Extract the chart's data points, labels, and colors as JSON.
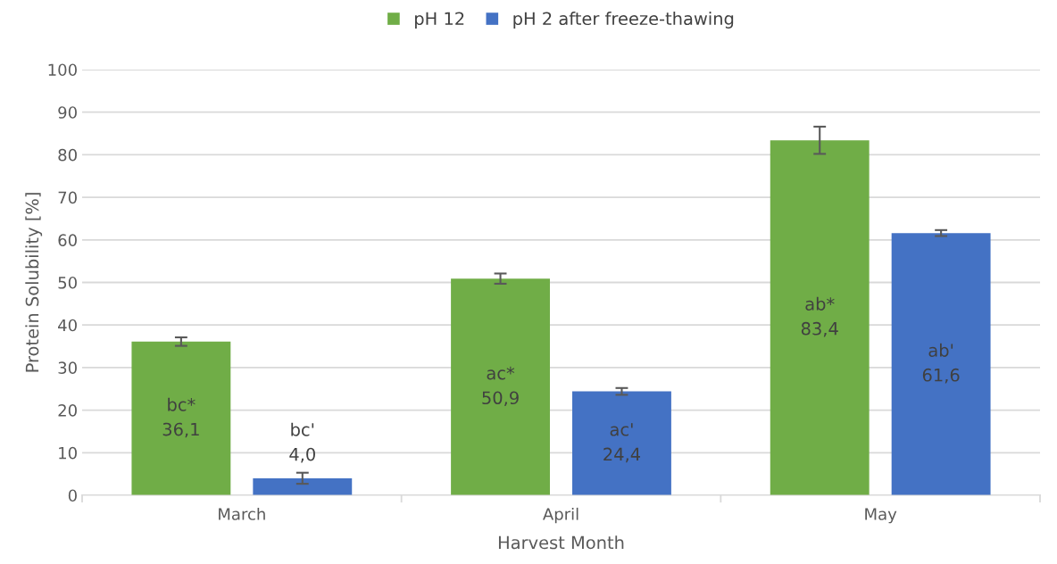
{
  "chart_data": {
    "type": "bar",
    "xlabel": "Harvest Month",
    "ylabel": "Protein Solubility [%]",
    "categories": [
      "March",
      "April",
      "May"
    ],
    "series": [
      {
        "name": "pH 12",
        "color": "#70ad47",
        "values": [
          36.1,
          50.9,
          83.4
        ],
        "errors": [
          1.0,
          1.2,
          3.2
        ],
        "value_labels": [
          "bc*\n36,1",
          "ac*\n50,9",
          "ab*\n83,4"
        ]
      },
      {
        "name": "pH 2 after freeze-thawing",
        "color": "#4472c4",
        "values": [
          4.0,
          24.4,
          61.6
        ],
        "errors": [
          1.3,
          0.8,
          0.7
        ],
        "value_labels": [
          "bc'\n4,0",
          "ac'\n24,4",
          "ab'\n61,6"
        ]
      }
    ],
    "ylim": [
      0,
      100
    ],
    "yticks": [
      0,
      10,
      20,
      30,
      40,
      50,
      60,
      70,
      80,
      90,
      100
    ],
    "grid": "y",
    "legend": "top"
  }
}
